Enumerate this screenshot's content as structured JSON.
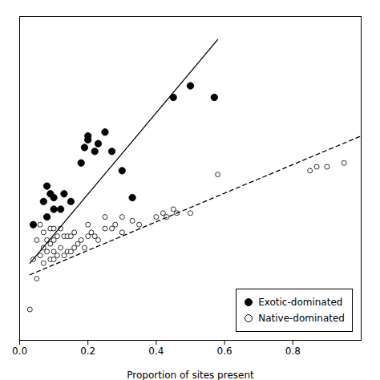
{
  "chart_data": {
    "type": "scatter",
    "xlabel": "Proportion of sites present",
    "xlim": [
      0.0,
      1.0
    ],
    "ylim": [
      2.0,
      6.2
    ],
    "xticks": [
      {
        "value": 0.0,
        "label": "0.0"
      },
      {
        "value": 0.2,
        "label": "0.2"
      },
      {
        "value": 0.4,
        "label": "0.4"
      },
      {
        "value": 0.6,
        "label": "0.6"
      },
      {
        "value": 0.8,
        "label": "0.8"
      }
    ],
    "yticks": [],
    "tick_labels": "x",
    "grid": false,
    "legend": "lower right",
    "series": [
      {
        "name": "Exotic-dominated",
        "color": "black",
        "marker": "filled",
        "line_style": "solid",
        "x": [
          0.04,
          0.07,
          0.08,
          0.08,
          0.09,
          0.1,
          0.1,
          0.12,
          0.13,
          0.15,
          0.18,
          0.19,
          0.2,
          0.2,
          0.22,
          0.23,
          0.25,
          0.27,
          0.3,
          0.33,
          0.45,
          0.5,
          0.57
        ],
        "values": [
          3.5,
          3.8,
          3.6,
          4.0,
          3.9,
          3.7,
          3.85,
          3.7,
          3.9,
          3.8,
          4.3,
          4.5,
          4.6,
          4.65,
          4.45,
          4.55,
          4.7,
          4.45,
          4.2,
          3.85,
          5.15,
          5.3,
          5.15
        ],
        "fit_x": [
          0.03,
          0.58
        ],
        "fit_y": [
          3.0,
          5.9
        ]
      },
      {
        "name": "Native-dominated",
        "color": "black",
        "marker": "open",
        "line_style": "dashed",
        "x": [
          0.03,
          0.04,
          0.05,
          0.05,
          0.06,
          0.06,
          0.07,
          0.07,
          0.07,
          0.08,
          0.08,
          0.09,
          0.09,
          0.09,
          0.1,
          0.1,
          0.1,
          0.1,
          0.11,
          0.11,
          0.12,
          0.12,
          0.13,
          0.13,
          0.14,
          0.14,
          0.15,
          0.15,
          0.16,
          0.16,
          0.17,
          0.18,
          0.19,
          0.2,
          0.2,
          0.21,
          0.22,
          0.23,
          0.25,
          0.25,
          0.27,
          0.28,
          0.3,
          0.3,
          0.33,
          0.35,
          0.4,
          0.42,
          0.43,
          0.45,
          0.46,
          0.5,
          0.58,
          0.85,
          0.87,
          0.9,
          0.95
        ],
        "values": [
          2.4,
          3.05,
          2.8,
          3.3,
          3.1,
          3.5,
          3.0,
          3.2,
          3.4,
          3.15,
          3.3,
          3.05,
          3.25,
          3.45,
          3.05,
          3.15,
          3.3,
          3.45,
          3.1,
          3.35,
          3.2,
          3.45,
          3.1,
          3.35,
          3.15,
          3.35,
          3.15,
          3.35,
          3.2,
          3.4,
          3.25,
          3.3,
          3.2,
          3.35,
          3.5,
          3.4,
          3.35,
          3.3,
          3.45,
          3.6,
          3.45,
          3.5,
          3.4,
          3.6,
          3.55,
          3.5,
          3.6,
          3.65,
          3.6,
          3.7,
          3.65,
          3.65,
          4.15,
          4.2,
          4.25,
          4.25,
          4.3
        ],
        "fit_x": [
          0.03,
          1.0
        ],
        "fit_y": [
          2.85,
          4.65
        ]
      }
    ]
  }
}
